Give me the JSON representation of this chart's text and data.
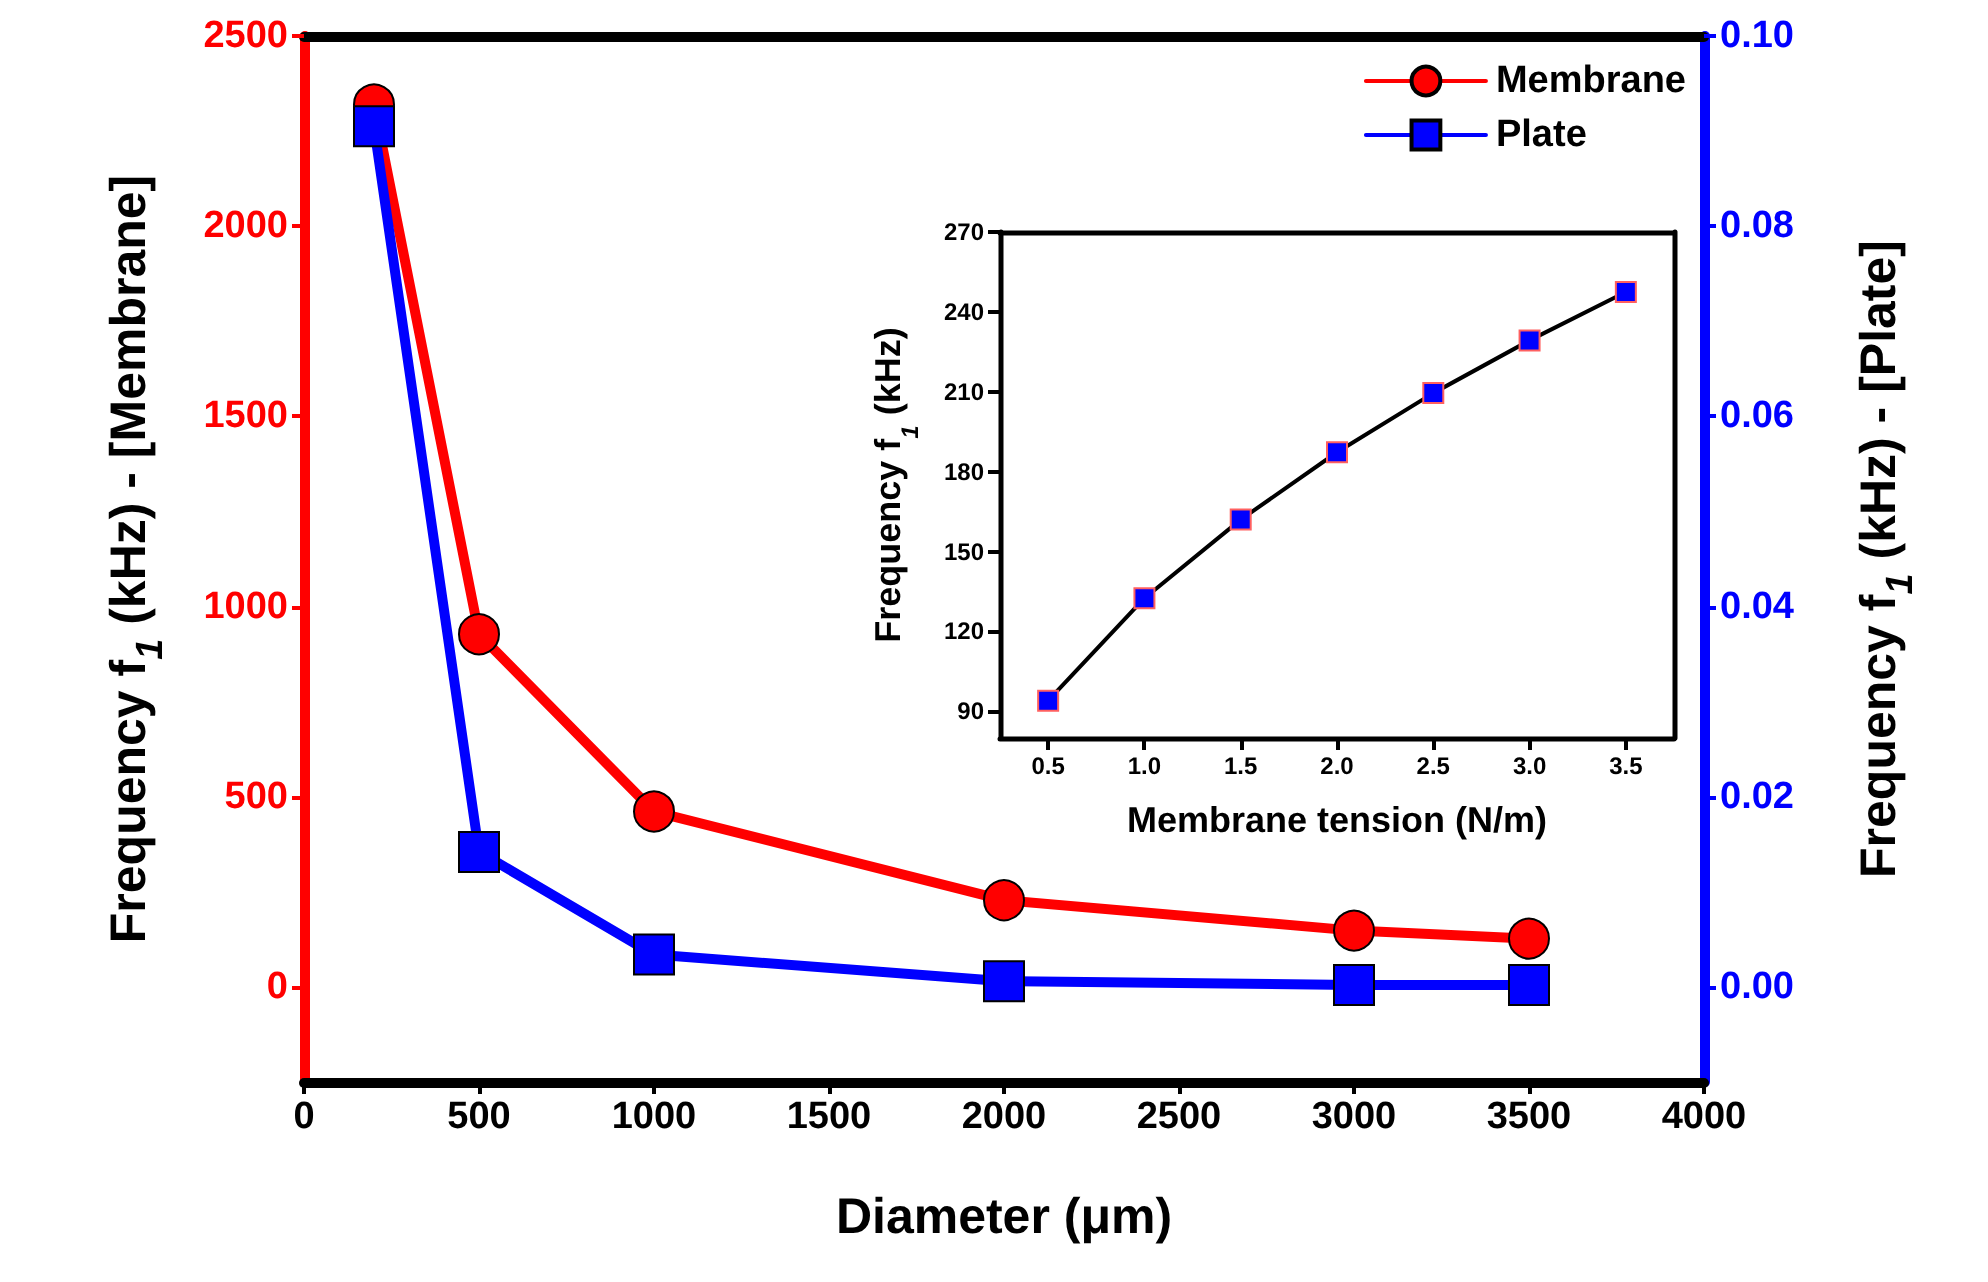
{
  "chart_data": [
    {
      "type": "line",
      "xlabel": "Diameter (μm)",
      "ylabel": "Frequency f$_{1}$ (kHz) - [Membrane]",
      "y2label": "Frequency f$_{1}$ (kHz) - [Plate]",
      "x": [
        200,
        500,
        1000,
        2000,
        3000,
        3500
      ],
      "series": [
        {
          "name": "Membrane",
          "color": "#ff0000",
          "marker": "circle",
          "values": [
            2320,
            927,
            461,
            228,
            148,
            127
          ]
        },
        {
          "name": "Plate",
          "color": "#0000ff",
          "marker": "square",
          "axis": "y2",
          "values": [
            0.0905,
            0.0142,
            0.0034,
            0.0006,
            0.0002,
            0.0002
          ]
        }
      ],
      "xlim": [
        0,
        4000
      ],
      "xticks": [
        0,
        500,
        1000,
        1500,
        2000,
        2500,
        3000,
        3500,
        4000
      ],
      "ylim": [
        -250,
        2500
      ],
      "yticks": [
        0,
        500,
        1000,
        1500,
        2000,
        2500
      ],
      "y2lim": [
        -0.01,
        0.1
      ],
      "y2ticks": [
        {
          "value": 0,
          "label": "0.00"
        },
        {
          "value": 0.02,
          "label": "0.02"
        },
        {
          "value": 0.04,
          "label": "0.04"
        },
        {
          "value": 0.06,
          "label": "0.06"
        },
        {
          "value": 0.08,
          "label": "0.08"
        },
        {
          "value": 0.1,
          "label": "0.10"
        }
      ],
      "legend": "top right",
      "grid": false,
      "line_style": "solid"
    },
    {
      "type": "line",
      "xlabel": "Membrane tension (N/m)",
      "ylabel": "Frequency f$_{1}$ (kHz)",
      "x": [
        0.5,
        1,
        1.5,
        2,
        2.5,
        3,
        3.5
      ],
      "series": [
        {
          "color": "#0000ff",
          "values": [
            94,
            132.5,
            162,
            187.3,
            209.5,
            229.3,
            247.5
          ]
        }
      ],
      "marker": "square",
      "line_style": "solid",
      "xlim": [
        0.25,
        3.75
      ],
      "xticks": [
        {
          "value": 0.5,
          "label": "0.5"
        },
        {
          "value": 1,
          "label": "1.0"
        },
        {
          "value": 1.5,
          "label": "1.5"
        },
        {
          "value": 2,
          "label": "2.0"
        },
        {
          "value": 2.5,
          "label": "2.5"
        },
        {
          "value": 3,
          "label": "3.0"
        },
        {
          "value": 3.5,
          "label": "3.5"
        }
      ],
      "ylim": [
        80,
        270
      ],
      "yticks": [
        90,
        120,
        150,
        180,
        210,
        240,
        270
      ],
      "grid": false,
      "legend": false
    }
  ]
}
